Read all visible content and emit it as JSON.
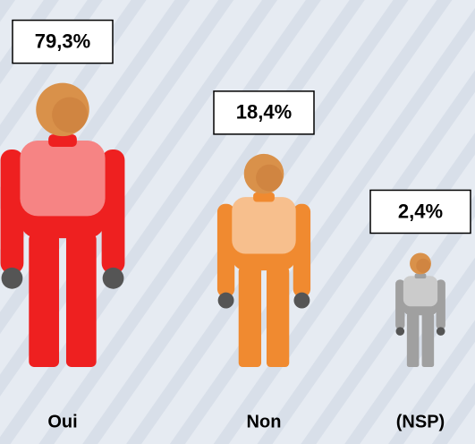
{
  "chart_data": {
    "type": "pictogram",
    "categories": [
      "Oui",
      "Non",
      "(NSP)"
    ],
    "values": [
      79.3,
      18.4,
      2.4
    ],
    "value_labels": [
      "79,3%",
      "18,4%",
      "2,4%"
    ],
    "colors": [
      "#ee2020",
      "#f08a30",
      "#a0a0a0"
    ]
  }
}
